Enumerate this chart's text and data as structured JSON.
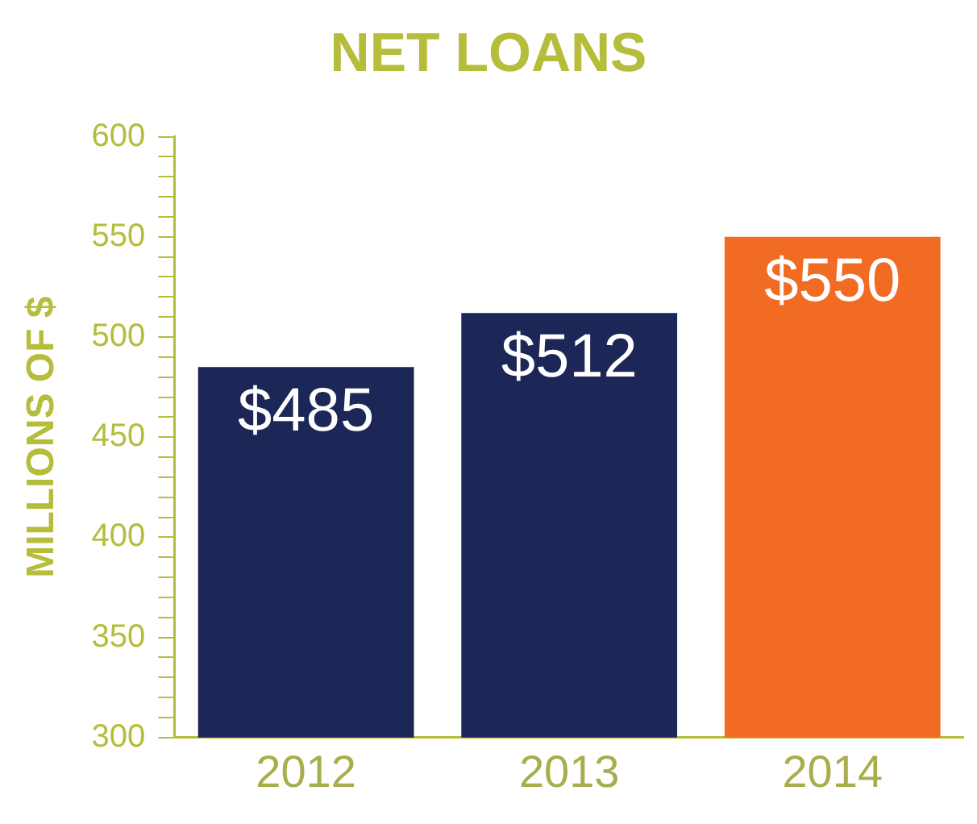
{
  "chart_data": {
    "type": "bar",
    "title": "NET LOANS",
    "ylabel": "MILLIONS OF $",
    "categories": [
      "2012",
      "2013",
      "2014"
    ],
    "values": [
      485,
      512,
      550
    ],
    "colors": [
      "#1c2657",
      "#1c2657",
      "#f26b22"
    ],
    "value_labels": [
      "$485",
      "$512",
      "$550"
    ],
    "ylim": [
      300,
      600
    ],
    "yticks": [
      300,
      {
        "value": 310,
        "label": null
      },
      {
        "value": 320,
        "label": null
      },
      {
        "value": 330,
        "label": null
      },
      {
        "value": 340,
        "label": null
      },
      350,
      {
        "value": 360,
        "label": null
      },
      {
        "value": 370,
        "label": null
      },
      {
        "value": 380,
        "label": null
      },
      {
        "value": 390,
        "label": null
      },
      400,
      {
        "value": 410,
        "label": null
      },
      {
        "value": 420,
        "label": null
      },
      {
        "value": 430,
        "label": null
      },
      {
        "value": 440,
        "label": null
      },
      450,
      {
        "value": 460,
        "label": null
      },
      {
        "value": 470,
        "label": null
      },
      {
        "value": 480,
        "label": null
      },
      {
        "value": 490,
        "label": null
      },
      500,
      {
        "value": 510,
        "label": null
      },
      {
        "value": 520,
        "label": null
      },
      {
        "value": 530,
        "label": null
      },
      {
        "value": 540,
        "label": null
      },
      550,
      {
        "value": 560,
        "label": null
      },
      {
        "value": 570,
        "label": null
      },
      {
        "value": 580,
        "label": null
      },
      {
        "value": 590,
        "label": null
      },
      600
    ],
    "grid": false,
    "legend": false
  }
}
